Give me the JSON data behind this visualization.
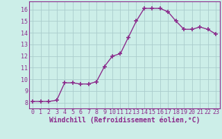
{
  "x": [
    0,
    1,
    2,
    3,
    4,
    5,
    6,
    7,
    8,
    9,
    10,
    11,
    12,
    13,
    14,
    15,
    16,
    17,
    18,
    19,
    20,
    21,
    22,
    23
  ],
  "y": [
    8.1,
    8.1,
    8.1,
    8.2,
    9.7,
    9.7,
    9.6,
    9.6,
    9.8,
    11.1,
    12.0,
    12.2,
    13.6,
    15.0,
    16.1,
    16.1,
    16.1,
    15.8,
    15.0,
    14.3,
    14.3,
    14.5,
    14.3,
    13.9
  ],
  "line_color": "#8B2A8B",
  "marker": "+",
  "markersize": 4,
  "markeredgewidth": 1.2,
  "linewidth": 1.0,
  "background_color": "#cceee8",
  "grid_color": "#aacccc",
  "xlabel": "Windchill (Refroidissement éolien,°C)",
  "xlabel_fontsize": 7,
  "ylabel_ticks": [
    8,
    9,
    10,
    11,
    12,
    13,
    14,
    15,
    16
  ],
  "xticks": [
    0,
    1,
    2,
    3,
    4,
    5,
    6,
    7,
    8,
    9,
    10,
    11,
    12,
    13,
    14,
    15,
    16,
    17,
    18,
    19,
    20,
    21,
    22,
    23
  ],
  "ylim": [
    7.5,
    16.7
  ],
  "xlim": [
    -0.5,
    23.5
  ],
  "tick_fontsize": 6,
  "tick_color": "#8B2A8B",
  "xlabel_color": "#8B2A8B",
  "spine_color": "#8B2A8B"
}
